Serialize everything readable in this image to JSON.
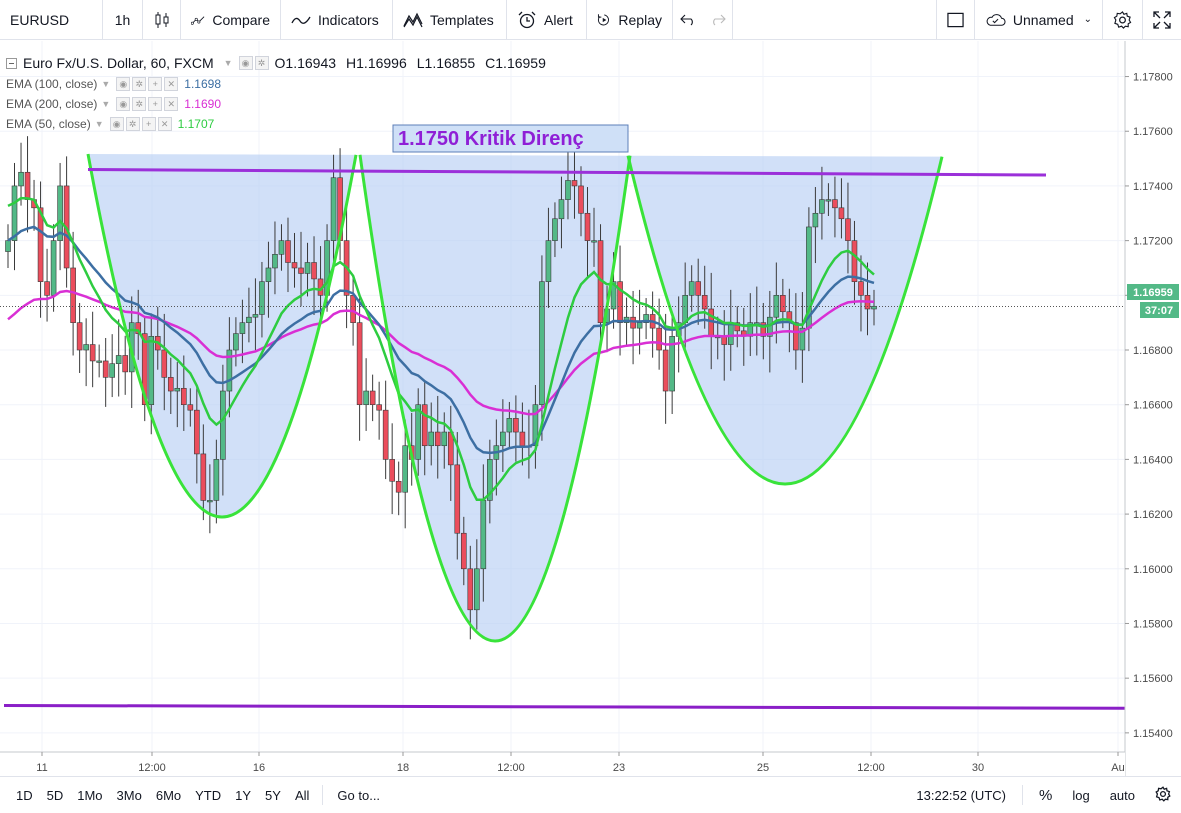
{
  "toolbar": {
    "symbol": "EURUSD",
    "interval": "1h",
    "compare": "Compare",
    "indicators": "Indicators",
    "templates": "Templates",
    "alert": "Alert",
    "replay": "Replay",
    "layout_name": "Unnamed"
  },
  "legend": {
    "title": "Euro Fx/U.S. Dollar, 60, FXCM",
    "open": "O1.16943",
    "high": "H1.16996",
    "low": "L1.16855",
    "close": "C1.16959",
    "studies": [
      {
        "label": "EMA (100, close)",
        "value": "1.1698",
        "color": "#3d6fa3"
      },
      {
        "label": "EMA (200, close)",
        "value": "1.1690",
        "color": "#d92fd4"
      },
      {
        "label": "EMA (50, close)",
        "value": "1.1707",
        "color": "#2ecc40"
      }
    ]
  },
  "annotation": {
    "text": "1.1750 Kritik Direnç",
    "color": "#8f1fd6"
  },
  "price_axis": {
    "ticks": [
      "1.17800",
      "1.17600",
      "1.17400",
      "1.17200",
      "1.17000",
      "1.16800",
      "1.16600",
      "1.16400",
      "1.16200",
      "1.16000",
      "1.15800",
      "1.15600",
      "1.15400"
    ],
    "last_price": "1.16959",
    "countdown": "37:07"
  },
  "time_axis": {
    "ticks": [
      "11",
      "12:00",
      "16",
      "18",
      "12:00",
      "23",
      "25",
      "12:00",
      "30",
      "Au"
    ]
  },
  "bottombar": {
    "ranges": [
      "1D",
      "5D",
      "1Mo",
      "3Mo",
      "6Mo",
      "YTD",
      "1Y",
      "5Y",
      "All"
    ],
    "goto": "Go to...",
    "clock": "13:22:52 (UTC)",
    "percent": "%",
    "log": "log",
    "auto": "auto"
  },
  "colors": {
    "up": "#53b987",
    "down": "#eb4d5c",
    "ema50": "#2ecc40",
    "ema100": "#3d6fa3",
    "ema200": "#d92fd4",
    "pattern_fill": "#b8cff5",
    "pattern_line": "#39e33a",
    "resistance": "#9b30d9",
    "support": "#8a1fc7"
  },
  "chart_data": {
    "type": "candlestick",
    "instrument": "EURUSD",
    "timeframe": "60",
    "ylim": [
      1.1533,
      1.1793
    ],
    "lines": [
      {
        "name": "resistance",
        "from": 1.1746,
        "to": 1.1744
      },
      {
        "name": "support",
        "from": 1.155,
        "to": 1.1549
      }
    ],
    "closes": [
      1.172,
      1.174,
      1.1745,
      1.1735,
      1.1732,
      1.1705,
      1.17,
      1.172,
      1.174,
      1.171,
      1.169,
      1.168,
      1.1682,
      1.1676,
      1.1676,
      1.167,
      1.1675,
      1.1678,
      1.1672,
      1.169,
      1.1686,
      1.166,
      1.1685,
      1.168,
      1.167,
      1.1665,
      1.1666,
      1.166,
      1.1658,
      1.1642,
      1.1625,
      1.1625,
      1.164,
      1.1665,
      1.168,
      1.1686,
      1.169,
      1.1692,
      1.1693,
      1.1705,
      1.171,
      1.1715,
      1.172,
      1.1712,
      1.171,
      1.1708,
      1.1712,
      1.1706,
      1.17,
      1.172,
      1.1743,
      1.172,
      1.17,
      1.169,
      1.166,
      1.1665,
      1.166,
      1.1658,
      1.164,
      1.1632,
      1.1628,
      1.1645,
      1.164,
      1.166,
      1.1645,
      1.165,
      1.1645,
      1.165,
      1.1638,
      1.1613,
      1.16,
      1.1585,
      1.16,
      1.1625,
      1.164,
      1.1645,
      1.165,
      1.1655,
      1.165,
      1.1645,
      1.1645,
      1.166,
      1.1705,
      1.172,
      1.1728,
      1.1735,
      1.1742,
      1.174,
      1.173,
      1.172,
      1.172,
      1.169,
      1.1695,
      1.1705,
      1.169,
      1.1692,
      1.1688,
      1.169,
      1.1693,
      1.1688,
      1.168,
      1.1665,
      1.1685,
      1.169,
      1.17,
      1.1705,
      1.17,
      1.1695,
      1.1685,
      1.1685,
      1.1682,
      1.169,
      1.1687,
      1.1685,
      1.169,
      1.169,
      1.1685,
      1.1692,
      1.17,
      1.1694,
      1.169,
      1.168,
      1.1688,
      1.1725,
      1.173,
      1.1735,
      1.1735,
      1.1732,
      1.1728,
      1.172,
      1.1705,
      1.17,
      1.1695,
      1.1696
    ]
  }
}
